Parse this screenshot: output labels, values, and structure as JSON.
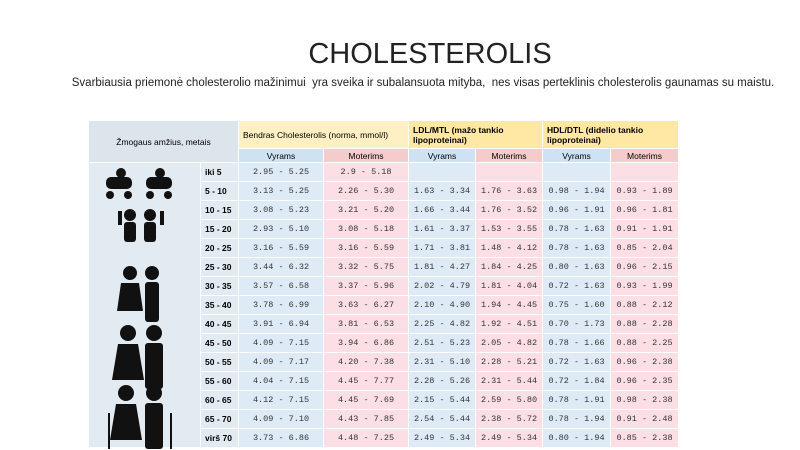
{
  "header": {
    "title": "CHOLESTEROLIS",
    "subtitle": "Svarbiausia priemonė cholesterolio mažinimui  yra sveika ir subalansuota mityba,  nes visas perteklinis cholesterolis gaunamas su maistu."
  },
  "table": {
    "age_header": "Žmogaus amžius, metais",
    "groups": [
      "Bendras Cholesterolis (norma, mmol/l)",
      "LDL/MTL (mažo tankio lipoproteinai)",
      "HDL/DTL (didelio tankio lipoproteinai)"
    ],
    "subheaders": [
      "Vyrams",
      "Moterims",
      "Vyrams",
      "Moterims",
      "Vyrams",
      "Moterims"
    ],
    "rows": [
      [
        "iki 5",
        "2.95 - 5.25",
        "2.9 - 5.18",
        null,
        null,
        null,
        null
      ],
      [
        "5 - 10",
        "3.13 - 5.25",
        "2.26 - 5.30",
        "1.63 - 3.34",
        "1.76 - 3.63",
        "0.98 - 1.94",
        "0.93 - 1.89"
      ],
      [
        "10 - 15",
        "3.08 - 5.23",
        "3.21 - 5.20",
        "1.66 - 3.44",
        "1.76 - 3.52",
        "0.96 - 1.91",
        "0.96 - 1.81"
      ],
      [
        "15 - 20",
        "2.93 - 5.10",
        "3.08 - 5.18",
        "1.61 - 3.37",
        "1.53 - 3.55",
        "0.78 - 1.63",
        "0.91 - 1.91"
      ],
      [
        "20 - 25",
        "3.16 - 5.59",
        "3.16 - 5.59",
        "1.71 - 3.81",
        "1.48 - 4.12",
        "0.78 - 1.63",
        "0.85 - 2.04"
      ],
      [
        "25 - 30",
        "3.44 - 6.32",
        "3.32 - 5.75",
        "1.81 - 4.27",
        "1.84 - 4.25",
        "0.80 - 1.63",
        "0.96 - 2.15"
      ],
      [
        "30 - 35",
        "3.57 - 6.58",
        "3.37 - 5.96",
        "2.02 - 4.79",
        "1.81 - 4.04",
        "0.72 - 1.63",
        "0.93 - 1.99"
      ],
      [
        "35 - 40",
        "3.78 - 6.99",
        "3.63 - 6.27",
        "2.10 - 4.90",
        "1.94 - 4.45",
        "0.75 - 1.60",
        "0.88 - 2.12"
      ],
      [
        "40 - 45",
        "3.91 - 6.94",
        "3.81 - 6.53",
        "2.25 - 4.82",
        "1.92 - 4.51",
        "0.70 - 1.73",
        "0.88 - 2.28"
      ],
      [
        "45 - 50",
        "4.09 - 7.15",
        "3.94 - 6.86",
        "2.51 - 5.23",
        "2.05 - 4.82",
        "0.78 - 1.66",
        "0.88 - 2.25"
      ],
      [
        "50 - 55",
        "4.09 - 7.17",
        "4.20 - 7.38",
        "2.31 - 5.10",
        "2.28 - 5.21",
        "0.72 - 1.63",
        "0.96 - 2.38"
      ],
      [
        "55 - 60",
        "4.04 - 7.15",
        "4.45 - 7.77",
        "2.28 - 5.26",
        "2.31 - 5.44",
        "0.72 - 1.84",
        "0.96 - 2.35"
      ],
      [
        "60 - 65",
        "4.12 - 7.15",
        "4.45 - 7.69",
        "2.15 - 5.44",
        "2.59 - 5.80",
        "0.78 - 1.91",
        "0.98 - 2.38"
      ],
      [
        "65 - 70",
        "4.09 - 7.10",
        "4.43 - 7.85",
        "2.54 - 5.44",
        "2.38 - 5.72",
        "0.78 - 1.94",
        "0.91 - 2.48"
      ],
      [
        "virš 70",
        "3.73 - 6.86",
        "4.48 - 7.25",
        "2.49 - 5.34",
        "2.49 - 5.34",
        "0.80 - 1.94",
        "0.85 - 2.38"
      ]
    ]
  }
}
